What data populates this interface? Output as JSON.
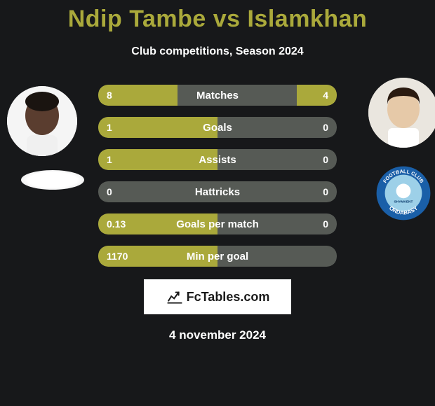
{
  "title": "Ndip Tambe vs Islamkhan",
  "subtitle": "Club competitions, Season 2024",
  "date": "4 november 2024",
  "brand": "FcTables.com",
  "colors": {
    "accent": "#aaa93b",
    "bar_bg": "#565a55",
    "page_bg": "#17181a",
    "text": "#ffffff"
  },
  "stats": [
    {
      "label": "Matches",
      "left_text": "8",
      "right_text": "4",
      "left_pct": 66.7,
      "right_pct": 33.3
    },
    {
      "label": "Goals",
      "left_text": "1",
      "right_text": "0",
      "left_pct": 100,
      "right_pct": 0
    },
    {
      "label": "Assists",
      "left_text": "1",
      "right_text": "0",
      "left_pct": 100,
      "right_pct": 0
    },
    {
      "label": "Hattricks",
      "left_text": "0",
      "right_text": "0",
      "left_pct": 0,
      "right_pct": 0
    },
    {
      "label": "Goals per match",
      "left_text": "0.13",
      "right_text": "0",
      "left_pct": 100,
      "right_pct": 0
    },
    {
      "label": "Min per goal",
      "left_text": "1170",
      "right_text": "",
      "left_pct": 100,
      "right_pct": 0
    }
  ],
  "player_left": {
    "name": "Ndip Tambe",
    "skin": "#5a3d2f",
    "shirt": "#f0f0f0"
  },
  "player_right": {
    "name": "Islamkhan",
    "skin": "#e6c9a8",
    "hair": "#2a1a10",
    "shirt": "#ffffff"
  },
  "team_right": {
    "name": "FC Ordabasy",
    "ring": "#1a5fa8",
    "inner": "#9dd0e8",
    "center": "#ffffff",
    "text": "#ffffff"
  }
}
